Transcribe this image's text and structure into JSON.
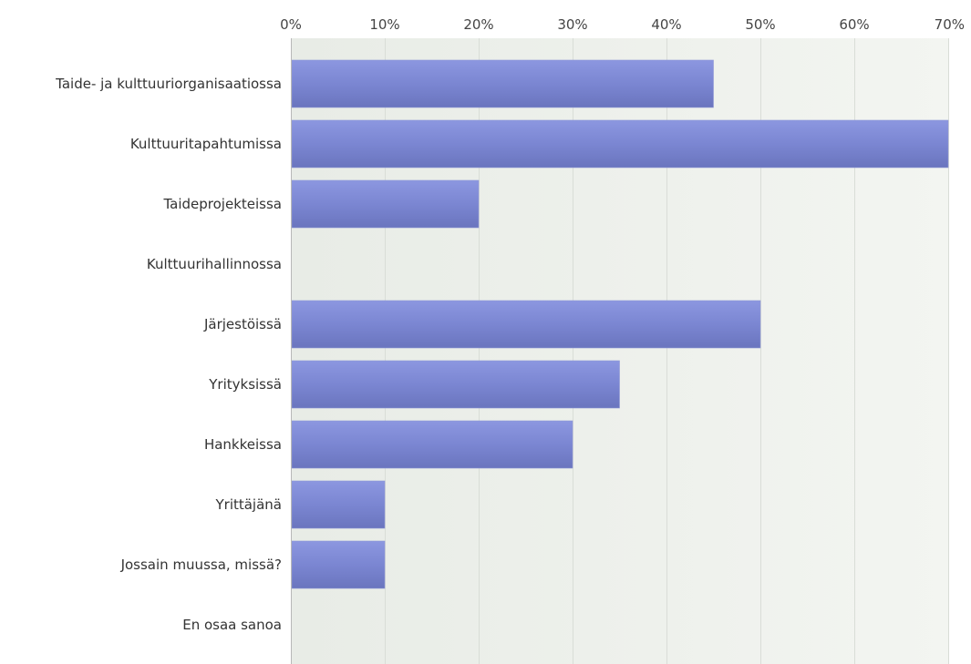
{
  "chart_data": {
    "type": "bar",
    "orientation": "horizontal",
    "x_ticks": [
      "0%",
      "10%",
      "20%",
      "30%",
      "40%",
      "50%",
      "60%",
      "70%"
    ],
    "xlim": [
      0,
      70
    ],
    "categories": [
      "Taide- ja kulttuuriorganisaatiossa",
      "Kulttuuritapahtumissa",
      "Taideprojekteissa",
      "Kulttuurihallinnossa",
      "Järjestöissä",
      "Yrityksissä",
      "Hankkeissa",
      "Yrittäjänä",
      "Jossain muussa, missä?",
      "En osaa sanoa"
    ],
    "values": [
      45,
      70,
      20,
      0,
      50,
      35,
      30,
      10,
      10,
      0
    ],
    "x_axis_position": "top",
    "grid": true,
    "bar_color": "#7b86d2",
    "bar_color_light": "#8c97e0",
    "bar_color_dark": "#6a75be",
    "plot_bg_color": "#eef1ec"
  }
}
